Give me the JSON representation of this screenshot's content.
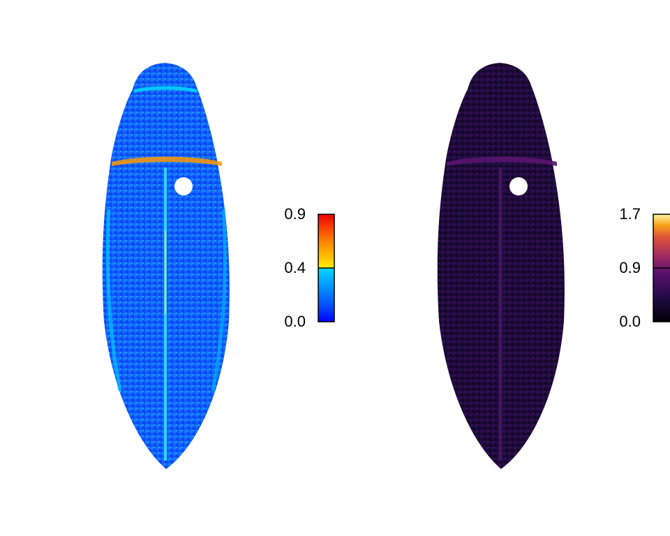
{
  "chart_data": [
    {
      "type": "heatmap",
      "title": "",
      "colormap": "blue-cyan-yellow-red",
      "colorbar": {
        "ticks": [
          {
            "value": 0.0,
            "label": "0.0"
          },
          {
            "value": 0.4,
            "label": "0.4"
          },
          {
            "value": 0.9,
            "label": "0.9"
          }
        ],
        "range": [
          0.0,
          0.9
        ],
        "stops": [
          "#0000ff",
          "#0060ff",
          "#00ccff",
          "#ffe000",
          "#ff7000",
          "#ee0000"
        ]
      },
      "dominant_value_range": [
        0.05,
        0.3
      ]
    },
    {
      "type": "heatmap",
      "title": "",
      "colormap": "inferno",
      "colorbar": {
        "ticks": [
          {
            "value": 0.0,
            "label": "0.0"
          },
          {
            "value": 0.9,
            "label": "0.9"
          },
          {
            "value": 1.7,
            "label": "1.7"
          }
        ],
        "range": [
          0.0,
          1.7
        ],
        "stops": [
          "#000004",
          "#2a0b52",
          "#6a176e",
          "#b3325f",
          "#e8632a",
          "#f9c73d",
          "#fcffa4"
        ]
      },
      "dominant_value_range": [
        0.05,
        0.35
      ]
    }
  ]
}
